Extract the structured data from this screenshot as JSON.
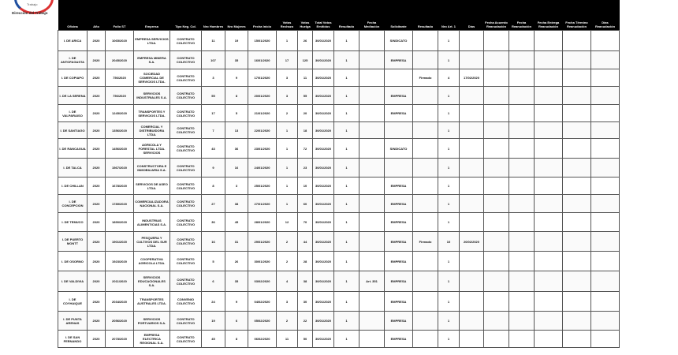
{
  "header": {
    "logo_text": "Trabajo",
    "org_line": "Dirección del Trabajo"
  },
  "columns": [
    "Oficina",
    "Año",
    "Folio ST",
    "Empresa",
    "Tipo Neg. Col.",
    "Nro Hombres",
    "Nro Mujeres",
    "Fecha Inicio",
    "Votos Rechazo",
    "Votos Huelga",
    "Total Votos Emitidos",
    "Resultado",
    "Fecha Mediación",
    "Solicitante",
    "Resultado",
    "Nro Art. 1",
    "Días",
    "Fecha Acuerdo Reanudación",
    "Fecha Reanudación",
    "Fecha Entrega Reanudación",
    "Fecha Término Reanudación",
    "Días Reanudación"
  ],
  "rows": [
    [
      "I. DE ARICA",
      "2020",
      "1065/2020",
      "EMPRESA SERVICIOS LTDA.",
      "CONTRATO COLECTIVO",
      "11",
      "19",
      "15/01/2020",
      "1",
      "26",
      "30/01/2020",
      "1",
      "",
      "SINDICATO",
      "",
      "1",
      "",
      "",
      "",
      "",
      "",
      ""
    ],
    [
      "I. DE ANTOFAGASTA",
      "2020",
      "2045/2020",
      "EMPRESA MINERA S.A.",
      "CONTRATO COLECTIVO",
      "107",
      "35",
      "16/01/2020",
      "17",
      "125",
      "30/01/2020",
      "1",
      "",
      "EMPRESA",
      "",
      "1",
      "",
      "",
      "",
      "",
      "",
      ""
    ],
    [
      "I. DE COPIAPO",
      "2020",
      "756/2020",
      "SOCIEDAD COMERCIAL DE SERVICIOS LTDA.",
      "CONTRATO COLECTIVO",
      "3",
      "9",
      "17/01/2020",
      "3",
      "11",
      "30/01/2020",
      "1",
      "",
      "",
      "Firmado",
      "4",
      "17/02/2020",
      "",
      "",
      "",
      "",
      ""
    ],
    [
      "I. DE LA SERENA",
      "2020",
      "756/2020",
      "SERVICIOS INDUSTRIALES S.A.",
      "CONTRATO COLECTIVO",
      "55",
      "8",
      "20/01/2020",
      "3",
      "55",
      "30/01/2020",
      "1",
      "",
      "EMPRESA",
      "",
      "1",
      "",
      "",
      "",
      "",
      "",
      ""
    ],
    [
      "I. DE VALPARAISO",
      "2020",
      "1245/2020",
      "TRANSPORTES Y SERVICIOS LTDA.",
      "CONTRATO COLECTIVO",
      "17",
      "5",
      "21/01/2020",
      "2",
      "20",
      "30/01/2020",
      "1",
      "",
      "EMPRESA",
      "",
      "1",
      "",
      "",
      "",
      "",
      "",
      ""
    ],
    [
      "I. DE SANTIAGO",
      "2020",
      "1356/2020",
      "COMERCIAL Y DISTRIBUIDORA LTDA.",
      "CONTRATO COLECTIVO",
      "7",
      "13",
      "22/01/2020",
      "1",
      "18",
      "30/01/2020",
      "1",
      "",
      "",
      "",
      "1",
      "",
      "",
      "",
      "",
      "",
      ""
    ],
    [
      "I. DE RANCAGUA",
      "2020",
      "1456/2020",
      "AGRICOLA Y FORESTAL LTDA. SERVICIOS",
      "CONTRATO COLECTIVO",
      "43",
      "36",
      "23/01/2020",
      "1",
      "72",
      "30/01/2020",
      "1",
      "",
      "SINDICATO",
      "",
      "1",
      "",
      "",
      "",
      "",
      "",
      ""
    ],
    [
      "I. DE TALCA",
      "2020",
      "1567/2020",
      "CONSTRUCTORA E INMOBILIARIA S.A.",
      "CONTRATO COLECTIVO",
      "9",
      "16",
      "24/01/2020",
      "1",
      "23",
      "30/01/2020",
      "1",
      "",
      "",
      "",
      "1",
      "",
      "",
      "",
      "",
      "",
      ""
    ],
    [
      "I. DE CHILLAN",
      "2020",
      "1678/2020",
      "SERVICIOS DE ASEO LTDA.",
      "CONTRATO COLECTIVO",
      "8",
      "3",
      "25/01/2020",
      "1",
      "10",
      "30/01/2020",
      "1",
      "",
      "EMPRESA",
      "",
      "1",
      "",
      "",
      "",
      "",
      "",
      ""
    ],
    [
      "I. DE CONCEPCION",
      "2020",
      "1789/2020",
      "COMERCIALIZADORA NACIONAL S.A.",
      "CONTRATO COLECTIVO",
      "27",
      "38",
      "27/01/2020",
      "1",
      "60",
      "30/01/2020",
      "1",
      "",
      "EMPRESA",
      "",
      "1",
      "",
      "",
      "",
      "",
      "",
      ""
    ],
    [
      "I. DE TEMUCO",
      "2020",
      "1890/2020",
      "INDUSTRIAS ALIMENTICIAS S.A.",
      "CONTRATO COLECTIVO",
      "36",
      "45",
      "28/01/2020",
      "12",
      "70",
      "30/01/2020",
      "1",
      "",
      "EMPRESA",
      "",
      "1",
      "",
      "",
      "",
      "",
      "",
      ""
    ],
    [
      "I. DE PUERTO MONTT",
      "2020",
      "1901/2020",
      "PESQUERA Y CULTIVOS DEL SUR LTDA.",
      "CONTRATO COLECTIVO",
      "16",
      "31",
      "29/01/2020",
      "2",
      "44",
      "30/01/2020",
      "1",
      "",
      "EMPRESA",
      "Firmado",
      "10",
      "20/02/2020",
      "",
      "",
      "",
      "",
      ""
    ],
    [
      "I. DE OSORNO",
      "2020",
      "1923/2020",
      "COOPERATIVA AGRICOLA LTDA.",
      "CONTRATO COLECTIVO",
      "5",
      "26",
      "30/01/2020",
      "2",
      "28",
      "30/01/2020",
      "1",
      "",
      "EMPRESA",
      "",
      "1",
      "",
      "",
      "",
      "",
      "",
      ""
    ],
    [
      "I. DE VALDIVIA",
      "2020",
      "2011/2020",
      "SERVICIOS EDUCACIONALES S.A.",
      "CONTRATO COLECTIVO",
      "6",
      "35",
      "03/02/2020",
      "4",
      "38",
      "30/01/2020",
      "1",
      "Art. 351",
      "EMPRESA",
      "",
      "1",
      "",
      "",
      "",
      "",
      "",
      ""
    ],
    [
      "I. DE COYHAIQUE",
      "2020",
      "2034/2020",
      "TRANSPORTES AUSTRALES LTDA.",
      "CONVENIO COLECTIVO",
      "24",
      "9",
      "04/02/2020",
      "3",
      "30",
      "30/01/2020",
      "1",
      "",
      "EMPRESA",
      "",
      "1",
      "",
      "",
      "",
      "",
      "",
      ""
    ],
    [
      "I. DE PUNTA ARENAS",
      "2020",
      "2056/2020",
      "SERVICIOS PORTUARIOS S.A.",
      "CONTRATO COLECTIVO",
      "19",
      "6",
      "05/02/2020",
      "2",
      "22",
      "30/01/2020",
      "1",
      "",
      "EMPRESA",
      "",
      "1",
      "",
      "",
      "",
      "",
      "",
      ""
    ],
    [
      "I. DE SAN FERNANDO",
      "2020",
      "2078/2020",
      "EMPRESA ELECTRICA REGIONAL S.A.",
      "CONTRATO COLECTIVO",
      "45",
      "8",
      "06/02/2020",
      "11",
      "50",
      "30/01/2020",
      "1",
      "",
      "EMPRESA",
      "",
      "1",
      "",
      "",
      "",
      "",
      "",
      ""
    ]
  ]
}
